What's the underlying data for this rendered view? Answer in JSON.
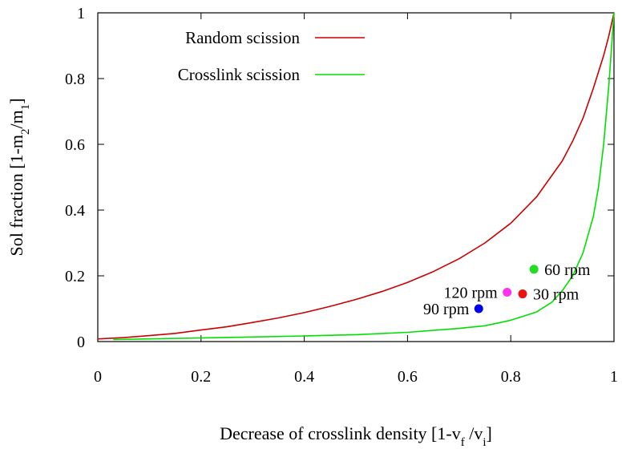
{
  "chart_data": {
    "type": "line",
    "xlabel": "Decrease of crosslink density [1-v_f /v_i]",
    "ylabel": "Sol fraction [1-m_2/m_1]",
    "xlim": [
      0,
      1
    ],
    "ylim": [
      0,
      1
    ],
    "x_ticks": [
      "0",
      "0.2",
      "0.4",
      "0.6",
      "0.8",
      "1"
    ],
    "y_ticks": [
      "0",
      "0.2",
      "0.4",
      "0.6",
      "0.8",
      "1"
    ],
    "grid": false,
    "legend_position": "top-left",
    "series": [
      {
        "name": "Random scission",
        "color": "#cc0000",
        "points": [
          [
            0.0,
            0.008
          ],
          [
            0.05,
            0.012
          ],
          [
            0.1,
            0.018
          ],
          [
            0.15,
            0.025
          ],
          [
            0.2,
            0.035
          ],
          [
            0.25,
            0.045
          ],
          [
            0.3,
            0.058
          ],
          [
            0.35,
            0.072
          ],
          [
            0.4,
            0.088
          ],
          [
            0.45,
            0.107
          ],
          [
            0.5,
            0.128
          ],
          [
            0.55,
            0.152
          ],
          [
            0.6,
            0.18
          ],
          [
            0.65,
            0.213
          ],
          [
            0.7,
            0.252
          ],
          [
            0.75,
            0.3
          ],
          [
            0.8,
            0.36
          ],
          [
            0.85,
            0.44
          ],
          [
            0.9,
            0.55
          ],
          [
            0.92,
            0.61
          ],
          [
            0.94,
            0.68
          ],
          [
            0.96,
            0.77
          ],
          [
            0.98,
            0.87
          ],
          [
            0.99,
            0.93
          ],
          [
            1.0,
            1.0
          ]
        ]
      },
      {
        "name": "Crosslink scission",
        "color": "#00e000",
        "points": [
          [
            0.03,
            0.006
          ],
          [
            0.1,
            0.008
          ],
          [
            0.2,
            0.011
          ],
          [
            0.3,
            0.014
          ],
          [
            0.4,
            0.017
          ],
          [
            0.5,
            0.021
          ],
          [
            0.6,
            0.028
          ],
          [
            0.7,
            0.04
          ],
          [
            0.75,
            0.048
          ],
          [
            0.8,
            0.065
          ],
          [
            0.85,
            0.09
          ],
          [
            0.88,
            0.12
          ],
          [
            0.9,
            0.155
          ],
          [
            0.92,
            0.2
          ],
          [
            0.94,
            0.27
          ],
          [
            0.96,
            0.38
          ],
          [
            0.97,
            0.47
          ],
          [
            0.98,
            0.6
          ],
          [
            0.99,
            0.78
          ],
          [
            1.0,
            1.0
          ]
        ]
      }
    ],
    "points": [
      {
        "label": "60 rpm",
        "x": 0.845,
        "y": 0.22,
        "color": "#22dd22",
        "label_side": "right"
      },
      {
        "label": "120 rpm",
        "x": 0.793,
        "y": 0.15,
        "color": "#ff33ee",
        "label_side": "left"
      },
      {
        "label": "30 rpm",
        "x": 0.823,
        "y": 0.145,
        "color": "#ee1111",
        "label_side": "right"
      },
      {
        "label": "90 rpm",
        "x": 0.738,
        "y": 0.1,
        "color": "#0000ee",
        "label_side": "left"
      }
    ]
  }
}
